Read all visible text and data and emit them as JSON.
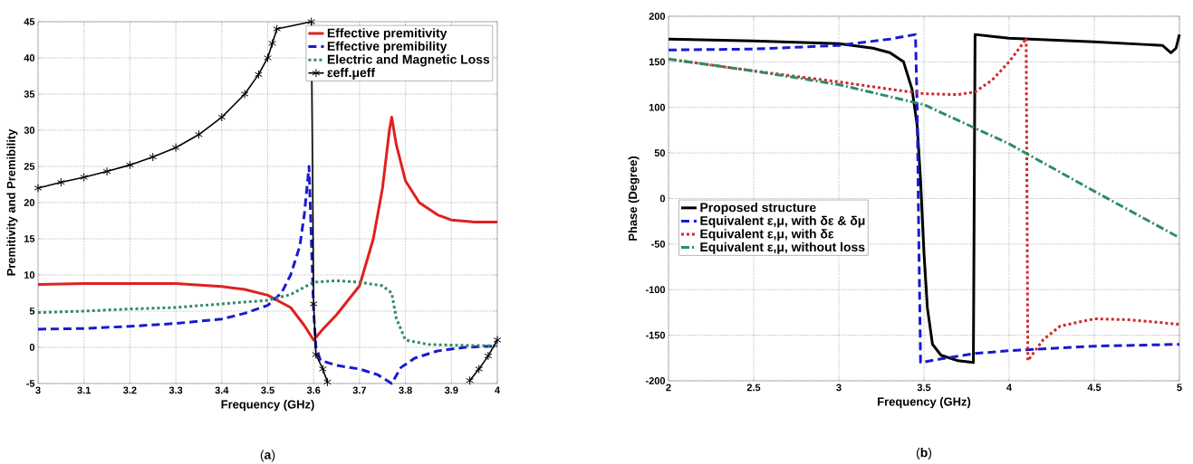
{
  "chart_data": [
    {
      "type": "line",
      "xlabel": "Frequency (GHz)",
      "ylabel": "Premitivity and Premibility",
      "xlim": [
        3,
        4
      ],
      "ylim": [
        -5,
        45
      ],
      "xticks": [
        3,
        3.1,
        3.2,
        3.3,
        3.4,
        3.5,
        3.6,
        3.7,
        3.8,
        3.9,
        4
      ],
      "yticks": [
        -5,
        0,
        5,
        10,
        15,
        20,
        25,
        30,
        35,
        40,
        45
      ],
      "grid": true,
      "legend": "top right",
      "annotations": [
        "(**a**)"
      ],
      "series": [
        {
          "name": "Effective premitivity",
          "color": "#e02020",
          "line_style": "solid",
          "x": [
            3.0,
            3.1,
            3.2,
            3.3,
            3.4,
            3.45,
            3.5,
            3.55,
            3.58,
            3.6,
            3.62,
            3.65,
            3.7,
            3.73,
            3.75,
            3.765,
            3.77,
            3.78,
            3.8,
            3.83,
            3.87,
            3.9,
            3.95,
            4.0
          ],
          "values": [
            8.7,
            8.8,
            8.8,
            8.8,
            8.4,
            8.0,
            7.2,
            5.5,
            3,
            1,
            2.5,
            4.5,
            8.5,
            15,
            22,
            30,
            31.8,
            28,
            23,
            20,
            18.3,
            17.6,
            17.3,
            17.3
          ]
        },
        {
          "name": "Effective premibility",
          "color": "#1a1ad0",
          "line_style": "dashed",
          "x": [
            3.0,
            3.1,
            3.2,
            3.3,
            3.4,
            3.45,
            3.5,
            3.53,
            3.55,
            3.57,
            3.58,
            3.59,
            3.595,
            3.6,
            3.605,
            3.615,
            3.65,
            3.7,
            3.74,
            3.77,
            3.79,
            3.82,
            3.87,
            3.93,
            4.0
          ],
          "values": [
            2.5,
            2.6,
            2.9,
            3.3,
            3.9,
            4.7,
            5.8,
            7.5,
            10,
            14,
            18.5,
            25,
            15,
            5,
            0,
            -1.8,
            -2.5,
            -3,
            -3.8,
            -5,
            -2.8,
            -1.5,
            -0.5,
            0,
            0.2
          ]
        },
        {
          "name": "Electric and Magnetic Loss",
          "color": "#2e8b6a",
          "line_style": "dotted",
          "x": [
            3.0,
            3.1,
            3.2,
            3.3,
            3.4,
            3.5,
            3.55,
            3.6,
            3.65,
            3.7,
            3.75,
            3.77,
            3.78,
            3.8,
            3.85,
            3.9,
            4.0
          ],
          "values": [
            4.8,
            5.0,
            5.3,
            5.5,
            6.0,
            6.5,
            7.3,
            9.0,
            9.2,
            9.0,
            8.5,
            7.5,
            4,
            1.0,
            0.4,
            0.3,
            0.2
          ]
        },
        {
          "name": "εeff.μeff",
          "color": "#000000",
          "line_style": "solid",
          "marker": "cross",
          "x": [
            3.0,
            3.05,
            3.1,
            3.15,
            3.2,
            3.25,
            3.3,
            3.35,
            3.4,
            3.45,
            3.48,
            3.5,
            3.51,
            3.52,
            3.595,
            3.6,
            3.605,
            3.62,
            3.63,
            3.8,
            3.94,
            3.96,
            3.98,
            4.0
          ],
          "values": [
            22,
            22.8,
            23.5,
            24.3,
            25.2,
            26.3,
            27.6,
            29.4,
            31.8,
            35,
            37.7,
            40,
            42,
            44,
            45,
            6,
            -1,
            -3,
            -4.8,
            null,
            -4.6,
            -3,
            -1.2,
            1
          ]
        }
      ]
    },
    {
      "type": "line",
      "xlabel": "Frequency (GHz)",
      "ylabel": "Phase (Degree)",
      "xlim": [
        2,
        5
      ],
      "ylim": [
        -200,
        200
      ],
      "xticks": [
        2,
        2.5,
        3,
        3.5,
        4,
        4.5,
        5
      ],
      "yticks": [
        -200,
        -150,
        -100,
        -50,
        0,
        50,
        100,
        150,
        200
      ],
      "grid": true,
      "legend": "left",
      "annotations": [
        "(**b**)"
      ],
      "series": [
        {
          "name": "Proposed structure",
          "color": "#000000",
          "line_style": "solid",
          "x": [
            2,
            2.5,
            3,
            3.2,
            3.3,
            3.38,
            3.43,
            3.46,
            3.48,
            3.5,
            3.52,
            3.55,
            3.6,
            3.7,
            3.79,
            3.8,
            3.9,
            4,
            4.5,
            4.9,
            4.95,
            4.98,
            5
          ],
          "values": [
            175,
            173,
            170,
            165,
            160,
            150,
            120,
            80,
            20,
            -60,
            -120,
            -160,
            -172,
            -178,
            -180,
            180,
            178,
            176,
            172,
            168,
            160,
            165,
            180
          ]
        },
        {
          "name": "Equivalent ε,μ, with δε & δμ",
          "color": "#1a1ad0",
          "line_style": "dashed",
          "x": [
            2,
            2.5,
            3,
            3.3,
            3.45,
            3.46,
            3.47,
            3.48,
            3.6,
            3.8,
            4,
            4.5,
            5
          ],
          "values": [
            163,
            164,
            168,
            175,
            180,
            100,
            -50,
            -180,
            -176,
            -170,
            -167,
            -162,
            -160
          ]
        },
        {
          "name": "Equivalent ε,μ, with δε",
          "color": "#d02828",
          "line_style": "dotted",
          "x": [
            2,
            2.5,
            3,
            3.3,
            3.5,
            3.7,
            3.8,
            3.9,
            4.0,
            4.08,
            4.1,
            4.11,
            4.2,
            4.3,
            4.5,
            4.7,
            5
          ],
          "values": [
            153,
            140,
            128,
            120,
            115,
            114,
            117,
            130,
            150,
            170,
            176,
            -178,
            -155,
            -140,
            -132,
            -133,
            -138
          ]
        },
        {
          "name": "Equivalent ε,μ, without loss",
          "color": "#2e8b6a",
          "line_style": "dashdot",
          "x": [
            2,
            2.5,
            3,
            3.5,
            4,
            4.5,
            5
          ],
          "values": [
            153,
            140,
            125,
            103,
            60,
            8,
            -43
          ]
        }
      ]
    }
  ]
}
